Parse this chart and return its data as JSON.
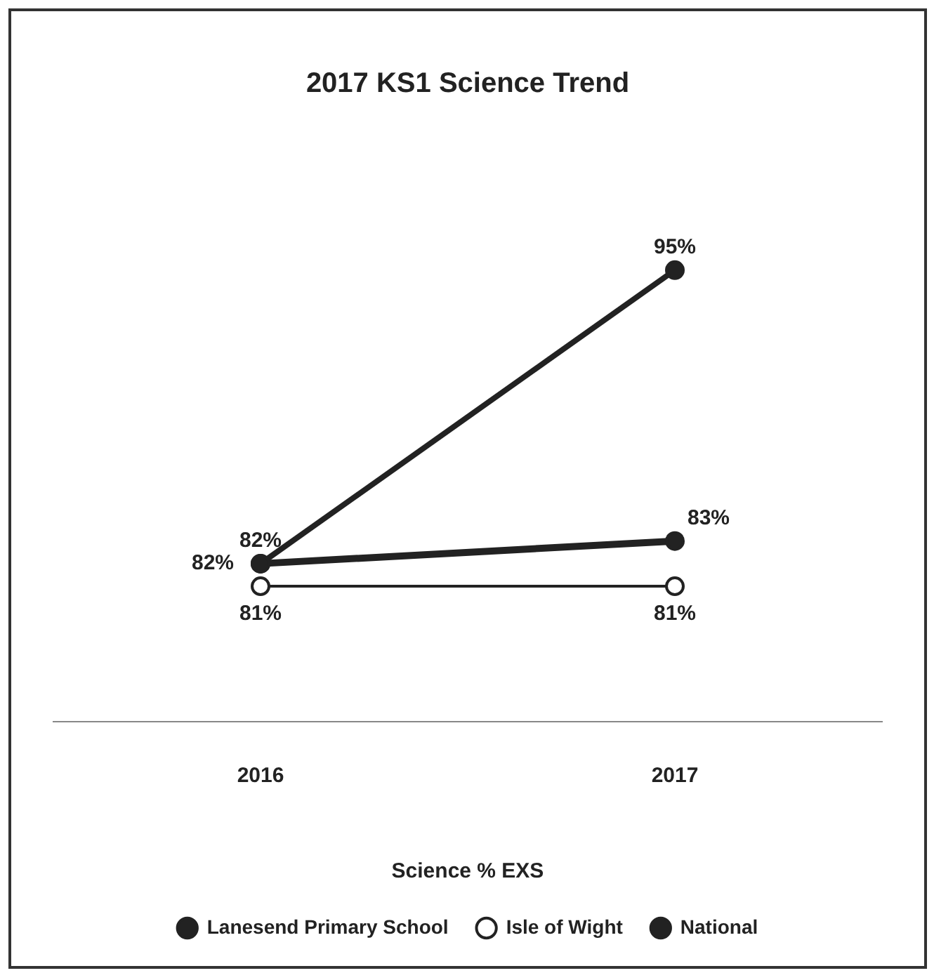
{
  "chart_data": {
    "type": "line",
    "title": "2017 KS1 Science Trend",
    "xlabel": "Science % EXS",
    "categories": [
      "2016",
      "2017"
    ],
    "series": [
      {
        "name": "Lanesend Primary School",
        "color": "#222222",
        "values": [
          82,
          95
        ],
        "value_labels": [
          "82%",
          "95%"
        ]
      },
      {
        "name": "Isle of Wight",
        "color": "#222222",
        "values": [
          81,
          81
        ],
        "value_labels": [
          "81%",
          "81%"
        ]
      },
      {
        "name": "National",
        "color": "#222222",
        "values": [
          82,
          83
        ],
        "value_labels": [
          "82%",
          "83%"
        ]
      }
    ],
    "legend": "bottom",
    "marker": "circle",
    "grid": false
  }
}
